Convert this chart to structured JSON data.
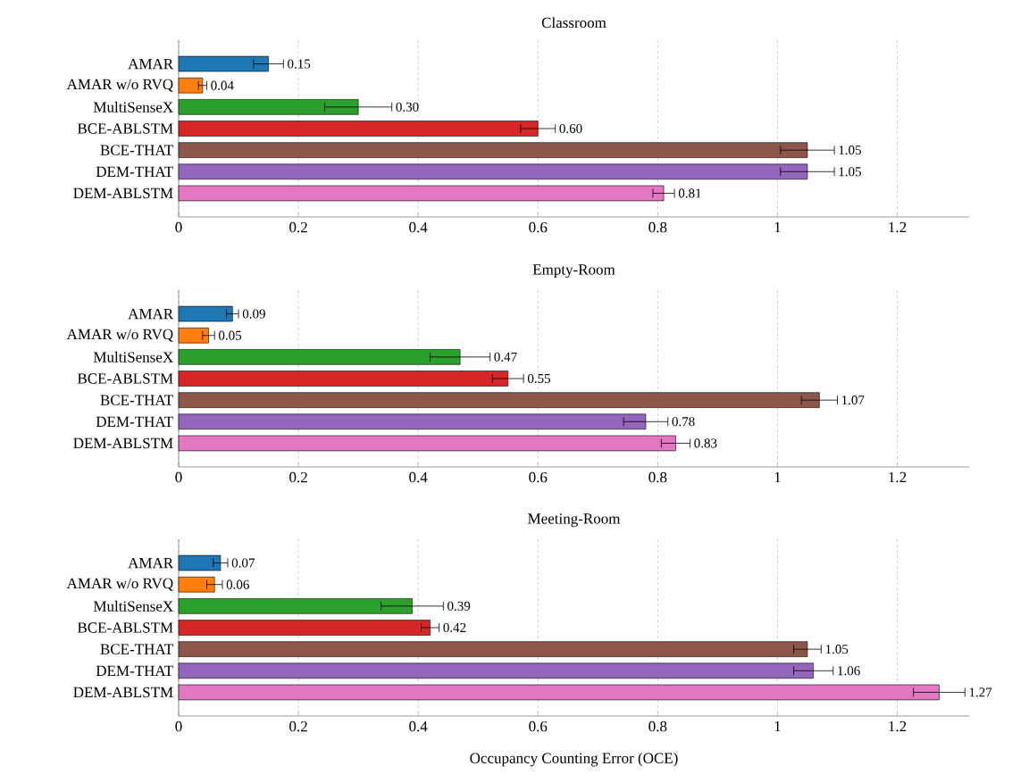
{
  "chart_data": [
    {
      "type": "bar",
      "orientation": "horizontal",
      "title": "Classroom",
      "categories": [
        "AMAR",
        "AMAR w/o RVQ",
        "MultiSenseX",
        "BCE-ABLSTM",
        "BCE-THAT",
        "DEM-THAT",
        "DEM-ABLSTM"
      ],
      "values": [
        0.15,
        0.04,
        0.3,
        0.6,
        1.05,
        1.05,
        0.81
      ],
      "errors": [
        0.025,
        0.007,
        0.056,
        0.029,
        0.045,
        0.045,
        0.018
      ],
      "value_labels": [
        "0.15",
        "0.04",
        "0.30",
        "0.60",
        "1.05",
        "1.05",
        "0.81"
      ],
      "colors": [
        "#1f77b4",
        "#ff7f0e",
        "#2ca02c",
        "#d62728",
        "#8c564b",
        "#9467bd",
        "#e377c2"
      ],
      "xlim": [
        0,
        1.32
      ],
      "xticks": [
        0,
        0.2,
        0.4,
        0.6,
        0.8,
        1,
        1.2
      ],
      "grid": "x"
    },
    {
      "type": "bar",
      "orientation": "horizontal",
      "title": "Empty-Room",
      "categories": [
        "AMAR",
        "AMAR w/o RVQ",
        "MultiSenseX",
        "BCE-ABLSTM",
        "BCE-THAT",
        "DEM-THAT",
        "DEM-ABLSTM"
      ],
      "values": [
        0.09,
        0.05,
        0.47,
        0.55,
        1.07,
        0.78,
        0.83
      ],
      "errors": [
        0.01,
        0.01,
        0.05,
        0.026,
        0.03,
        0.037,
        0.024
      ],
      "value_labels": [
        "0.09",
        "0.05",
        "0.47",
        "0.55",
        "1.07",
        "0.78",
        "0.83"
      ],
      "colors": [
        "#1f77b4",
        "#ff7f0e",
        "#2ca02c",
        "#d62728",
        "#8c564b",
        "#9467bd",
        "#e377c2"
      ],
      "xlim": [
        0,
        1.32
      ],
      "xticks": [
        0,
        0.2,
        0.4,
        0.6,
        0.8,
        1,
        1.2
      ],
      "grid": "x"
    },
    {
      "type": "bar",
      "orientation": "horizontal",
      "title": "Meeting-Room",
      "xlabel": "Occupancy Counting Error (OCE)",
      "categories": [
        "AMAR",
        "AMAR w/o RVQ",
        "MultiSenseX",
        "BCE-ABLSTM",
        "BCE-THAT",
        "DEM-THAT",
        "DEM-ABLSTM"
      ],
      "values": [
        0.07,
        0.06,
        0.39,
        0.42,
        1.05,
        1.06,
        1.27
      ],
      "errors": [
        0.012,
        0.013,
        0.052,
        0.015,
        0.023,
        0.033,
        0.043
      ],
      "value_labels": [
        "0.07",
        "0.06",
        "0.39",
        "0.42",
        "1.05",
        "1.06",
        "1.27"
      ],
      "colors": [
        "#1f77b4",
        "#ff7f0e",
        "#2ca02c",
        "#d62728",
        "#8c564b",
        "#9467bd",
        "#e377c2"
      ],
      "xlim": [
        0,
        1.32
      ],
      "xticks": [
        0,
        0.2,
        0.4,
        0.6,
        0.8,
        1,
        1.2
      ],
      "grid": "x"
    }
  ]
}
